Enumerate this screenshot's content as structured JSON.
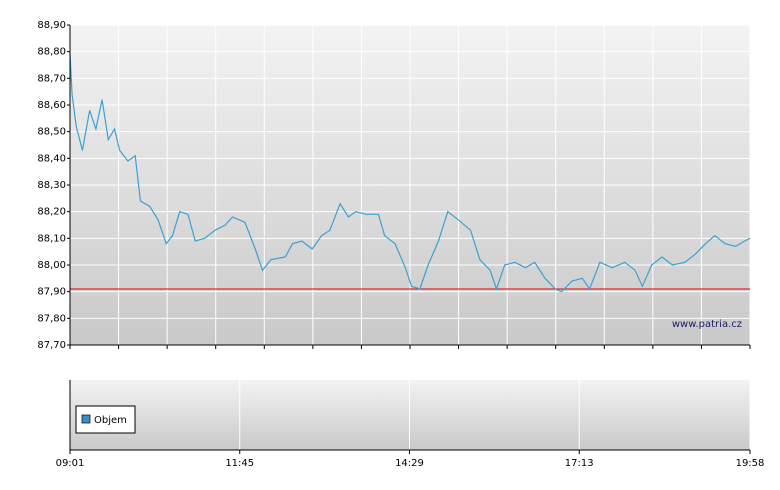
{
  "chart_data": [
    {
      "type": "line",
      "x": [
        "09:01",
        "09:03",
        "09:07",
        "09:13",
        "09:20",
        "09:26",
        "09:32",
        "09:38",
        "09:44",
        "09:49",
        "09:57",
        "10:04",
        "10:09",
        "10:18",
        "10:26",
        "10:34",
        "10:40",
        "10:47",
        "10:55",
        "11:02",
        "11:11",
        "11:21",
        "11:31",
        "11:38",
        "11:50",
        "12:00",
        "12:07",
        "12:15",
        "12:29",
        "12:36",
        "12:45",
        "12:55",
        "13:04",
        "13:12",
        "13:22",
        "13:30",
        "13:37",
        "13:47",
        "13:59",
        "14:05",
        "14:15",
        "14:25",
        "14:31",
        "14:39",
        "14:47",
        "14:57",
        "15:06",
        "15:16",
        "15:28",
        "15:37",
        "15:47",
        "15:53",
        "16:01",
        "16:11",
        "16:21",
        "16:30",
        "16:40",
        "16:50",
        "16:56",
        "17:06",
        "17:16",
        "17:23",
        "17:33",
        "17:45",
        "17:57",
        "18:07",
        "18:14",
        "18:23",
        "18:33",
        "18:43",
        "18:55",
        "19:05",
        "19:15",
        "19:24",
        "19:34",
        "19:44",
        "19:53",
        "19:58"
      ],
      "series": [
        {
          "color": "#3ea0d0",
          "values": [
            88.79,
            88.64,
            88.52,
            88.43,
            88.58,
            88.51,
            88.62,
            88.47,
            88.51,
            88.43,
            88.39,
            88.41,
            88.24,
            88.22,
            88.17,
            88.08,
            88.11,
            88.2,
            88.19,
            88.09,
            88.1,
            88.13,
            88.15,
            88.18,
            88.16,
            88.06,
            87.98,
            88.02,
            88.03,
            88.08,
            88.09,
            88.06,
            88.11,
            88.13,
            88.23,
            88.18,
            88.2,
            88.19,
            88.19,
            88.11,
            88.08,
            87.99,
            87.92,
            87.91,
            88.0,
            88.09,
            88.2,
            88.17,
            88.13,
            88.02,
            87.98,
            87.91,
            88.0,
            88.01,
            87.99,
            88.01,
            87.95,
            87.91,
            87.9,
            87.94,
            87.95,
            87.91,
            88.01,
            87.99,
            88.01,
            87.98,
            87.92,
            88.0,
            88.03,
            88.0,
            88.01,
            88.04,
            88.08,
            88.11,
            88.08,
            88.07,
            88.09,
            88.1
          ]
        }
      ],
      "xlim": [
        "09:01",
        "19:58"
      ],
      "xticks": [
        "09:01",
        "11:45",
        "14:29",
        "17:13",
        "19:58"
      ],
      "ylim": [
        87.7,
        88.9
      ],
      "yticks": [
        {
          "value": 87.7,
          "label": "87,70"
        },
        {
          "value": 87.8,
          "label": "87,80"
        },
        {
          "value": 87.9,
          "label": "87,90"
        },
        {
          "value": 88.0,
          "label": "88,00"
        },
        {
          "value": 88.1,
          "label": "88,10"
        },
        {
          "value": 88.2,
          "label": "88,20"
        },
        {
          "value": 88.3,
          "label": "88,30"
        },
        {
          "value": 88.4,
          "label": "88,40"
        },
        {
          "value": 88.5,
          "label": "88,50"
        },
        {
          "value": 88.6,
          "label": "88,60"
        },
        {
          "value": 88.7,
          "label": "88,70"
        },
        {
          "value": 88.8,
          "label": "88,80"
        },
        {
          "value": 88.9,
          "label": "88,90"
        }
      ],
      "reference_line": {
        "value": 87.91,
        "color": "#e00000"
      },
      "watermark": "www.patria.cz",
      "grid": true
    },
    {
      "type": "bar",
      "series": [
        {
          "name": "Objem",
          "color": "#3f8fc4",
          "values": []
        }
      ],
      "legend": "upper left"
    }
  ]
}
